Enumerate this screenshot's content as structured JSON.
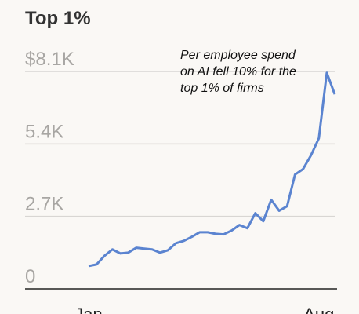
{
  "chart_data": {
    "type": "line",
    "title": "Top 1%",
    "annotation": "Per employee spend on AI fell 10% for the top 1% of firms",
    "categories": [
      "Jan",
      null,
      null,
      null,
      null,
      null,
      null,
      null,
      null,
      null,
      null,
      null,
      null,
      null,
      null,
      null,
      null,
      null,
      null,
      null,
      null,
      null,
      null,
      null,
      null,
      null,
      null,
      null,
      null,
      "Aug",
      null,
      null
    ],
    "series": [
      {
        "color": "#5b84d0",
        "values": [
          850,
          910,
          1230,
          1470,
          1320,
          1350,
          1530,
          1500,
          1470,
          1350,
          1440,
          1700,
          1790,
          1940,
          2110,
          2110,
          2050,
          2030,
          2170,
          2380,
          2260,
          2820,
          2520,
          3320,
          2910,
          3080,
          4260,
          4460,
          4970,
          5610,
          8050,
          7250
        ]
      }
    ],
    "ylim": [
      0,
      8100
    ],
    "yticks": [
      0,
      {
        "value": 2700,
        "label": "2.7K"
      },
      {
        "value": 5400,
        "label": "5.4K"
      },
      {
        "value": 8100,
        "label": "$8.1K"
      }
    ],
    "grid": true
  }
}
